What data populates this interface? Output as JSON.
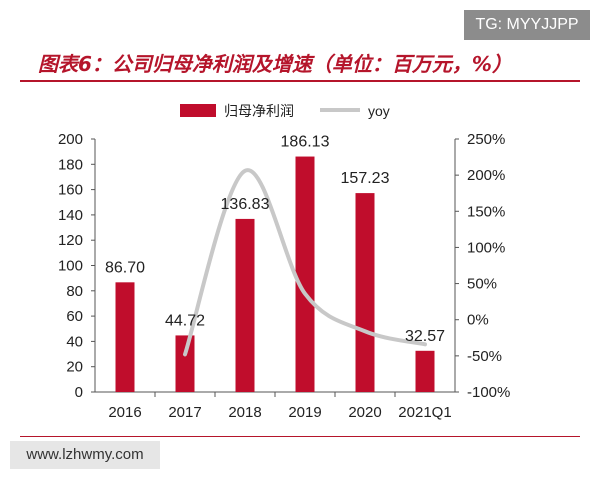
{
  "watermark_top": "TG: MYYJJPP",
  "watermark_bottom": "www.lzhwmy.com",
  "chart_data": {
    "type": "bar",
    "title": "图表6：公司归母净利润及增速（单位：百万元，%）",
    "categories": [
      "2016",
      "2017",
      "2018",
      "2019",
      "2020",
      "2021Q1"
    ],
    "series": [
      {
        "name": "归母净利润",
        "type": "bar",
        "axis": "left",
        "values": [
          86.7,
          44.72,
          136.83,
          186.13,
          157.23,
          32.57
        ],
        "color": "#c00d2c"
      },
      {
        "name": "yoy",
        "type": "line",
        "axis": "right",
        "smooth": true,
        "values": [
          null,
          -48,
          206,
          36,
          -16,
          -34
        ],
        "color": "#c8c8c8"
      }
    ],
    "data_labels": [
      "86.70",
      "44.72",
      "136.83",
      "186.13",
      "157.23",
      "32.57"
    ],
    "y_left": {
      "ylim": [
        0,
        200
      ],
      "ticks": [
        "0",
        "20",
        "40",
        "60",
        "80",
        "100",
        "120",
        "140",
        "160",
        "180",
        "200"
      ]
    },
    "y_right": {
      "ylim": [
        -100,
        250
      ],
      "ticks": [
        "-100%",
        "-50%",
        "0%",
        "50%",
        "100%",
        "150%",
        "200%",
        "250%"
      ]
    },
    "legend": {
      "placement": "top",
      "entries": [
        "归母净利润",
        "yoy"
      ]
    },
    "grid": false
  }
}
